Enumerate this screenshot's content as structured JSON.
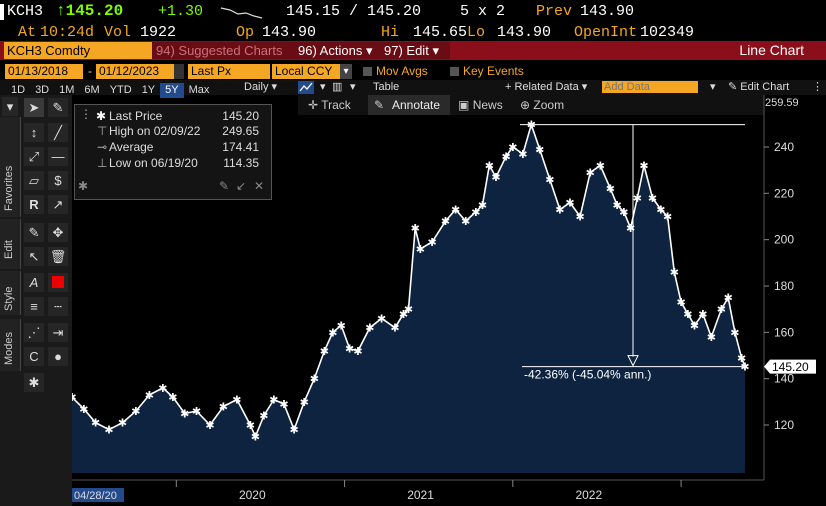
{
  "header": {
    "ticker": "KCH3",
    "last_price": "↑145.20",
    "change": "+1.30",
    "quote": "145.15 / 145.20",
    "size": "5 x 2",
    "prev_label": "Prev",
    "prev_value": "143.90",
    "at_label": "At",
    "time": "10:24d",
    "vol_label": "Vol",
    "vol_value": "1922",
    "op_label": "Op",
    "op_value": "143.90",
    "hi_label": "Hi",
    "hi_value": "145.65",
    "lo_label": "Lo",
    "lo_value": "143.90",
    "oi_label": "OpenInt",
    "oi_value": "102349"
  },
  "menubar": {
    "security": "KCH3 Comdty",
    "suggested": "94) Suggested Charts",
    "actions": "96) Actions",
    "edit": "97) Edit",
    "chart_type": "Line Chart"
  },
  "toolbar": {
    "start_date": "01/13/2018",
    "end_date": "01/12/2023",
    "field": "Last Px",
    "currency": "Local CCY",
    "mov_avgs": "Mov Avgs",
    "key_events": "Key Events",
    "periods": [
      "1D",
      "3D",
      "1M",
      "6M",
      "YTD",
      "1Y",
      "5Y",
      "Max"
    ],
    "selected_period": "5Y",
    "frequency": "Daily",
    "table": "Table",
    "related_data": "+ Related Data",
    "add_data_placeholder": "Add Data",
    "edit_chart": "Edit Chart"
  },
  "annotate_bar": {
    "track": "Track",
    "annotate": "Annotate",
    "news": "News",
    "zoom": "Zoom"
  },
  "side_tabs": [
    "Favorites",
    "Edit",
    "Style",
    "Modes"
  ],
  "legend_box": {
    "last_price_label": "Last Price",
    "last_price_value": "145.20",
    "high_label": "High on 02/09/22",
    "high_value": "249.65",
    "average_label": "Average",
    "average_value": "174.41",
    "low_label": "Low on 06/19/20",
    "low_value": "114.35"
  },
  "annotation": {
    "text": "-42.36% (-45.04% ann.)"
  },
  "colors": {
    "area_fill": "#0d2340",
    "line": "#ffffff",
    "header_orange": "#f5a623",
    "menu_red": "#8b0f1a",
    "price_green": "#7cfc00"
  },
  "chart_data": {
    "type": "area",
    "title": "",
    "xlabel": "",
    "ylabel": "",
    "x_tick_labels": [
      "2020",
      "2021",
      "2022"
    ],
    "start_label": "04/28/20",
    "y_ticks": [
      120,
      140,
      160,
      180,
      200,
      220,
      240
    ],
    "y_top_label": "259.59",
    "ylim": [
      105,
      262
    ],
    "last_value_label": "145.20",
    "grid": false,
    "series": [
      {
        "values": [
          [
            2019.38,
            132
          ],
          [
            2019.45,
            127
          ],
          [
            2019.52,
            121
          ],
          [
            2019.6,
            118
          ],
          [
            2019.68,
            121
          ],
          [
            2019.76,
            126
          ],
          [
            2019.84,
            133
          ],
          [
            2019.92,
            136
          ],
          [
            2019.98,
            132
          ],
          [
            2020.05,
            125
          ],
          [
            2020.12,
            126
          ],
          [
            2020.2,
            120
          ],
          [
            2020.28,
            128
          ],
          [
            2020.36,
            131
          ],
          [
            2020.44,
            120
          ],
          [
            2020.47,
            115
          ],
          [
            2020.52,
            124
          ],
          [
            2020.58,
            131
          ],
          [
            2020.64,
            129
          ],
          [
            2020.7,
            118
          ],
          [
            2020.76,
            130
          ],
          [
            2020.82,
            140
          ],
          [
            2020.88,
            152
          ],
          [
            2020.93,
            160
          ],
          [
            2020.98,
            163
          ],
          [
            2021.03,
            153
          ],
          [
            2021.08,
            152
          ],
          [
            2021.15,
            162
          ],
          [
            2021.22,
            166
          ],
          [
            2021.3,
            162
          ],
          [
            2021.35,
            168
          ],
          [
            2021.38,
            170
          ],
          [
            2021.42,
            205
          ],
          [
            2021.45,
            196
          ],
          [
            2021.52,
            199
          ],
          [
            2021.6,
            208
          ],
          [
            2021.66,
            213
          ],
          [
            2021.72,
            208
          ],
          [
            2021.78,
            212
          ],
          [
            2021.82,
            215
          ],
          [
            2021.86,
            232
          ],
          [
            2021.9,
            227
          ],
          [
            2021.96,
            236
          ],
          [
            2022.0,
            240
          ],
          [
            2022.06,
            237
          ],
          [
            2022.11,
            249.65
          ],
          [
            2022.16,
            239
          ],
          [
            2022.22,
            226
          ],
          [
            2022.28,
            213
          ],
          [
            2022.34,
            216
          ],
          [
            2022.4,
            210
          ],
          [
            2022.46,
            229
          ],
          [
            2022.52,
            232
          ],
          [
            2022.58,
            222
          ],
          [
            2022.62,
            215
          ],
          [
            2022.66,
            212
          ],
          [
            2022.7,
            205
          ],
          [
            2022.74,
            218
          ],
          [
            2022.78,
            232
          ],
          [
            2022.83,
            218
          ],
          [
            2022.88,
            213
          ],
          [
            2022.92,
            210
          ],
          [
            2022.96,
            186
          ],
          [
            2023.0,
            173
          ],
          [
            2023.04,
            168
          ],
          [
            2023.08,
            163
          ],
          [
            2023.13,
            168
          ],
          [
            2023.18,
            158
          ],
          [
            2023.24,
            170
          ],
          [
            2023.28,
            175
          ],
          [
            2023.32,
            160
          ],
          [
            2023.36,
            149
          ],
          [
            2023.38,
            145.2
          ]
        ]
      }
    ]
  }
}
